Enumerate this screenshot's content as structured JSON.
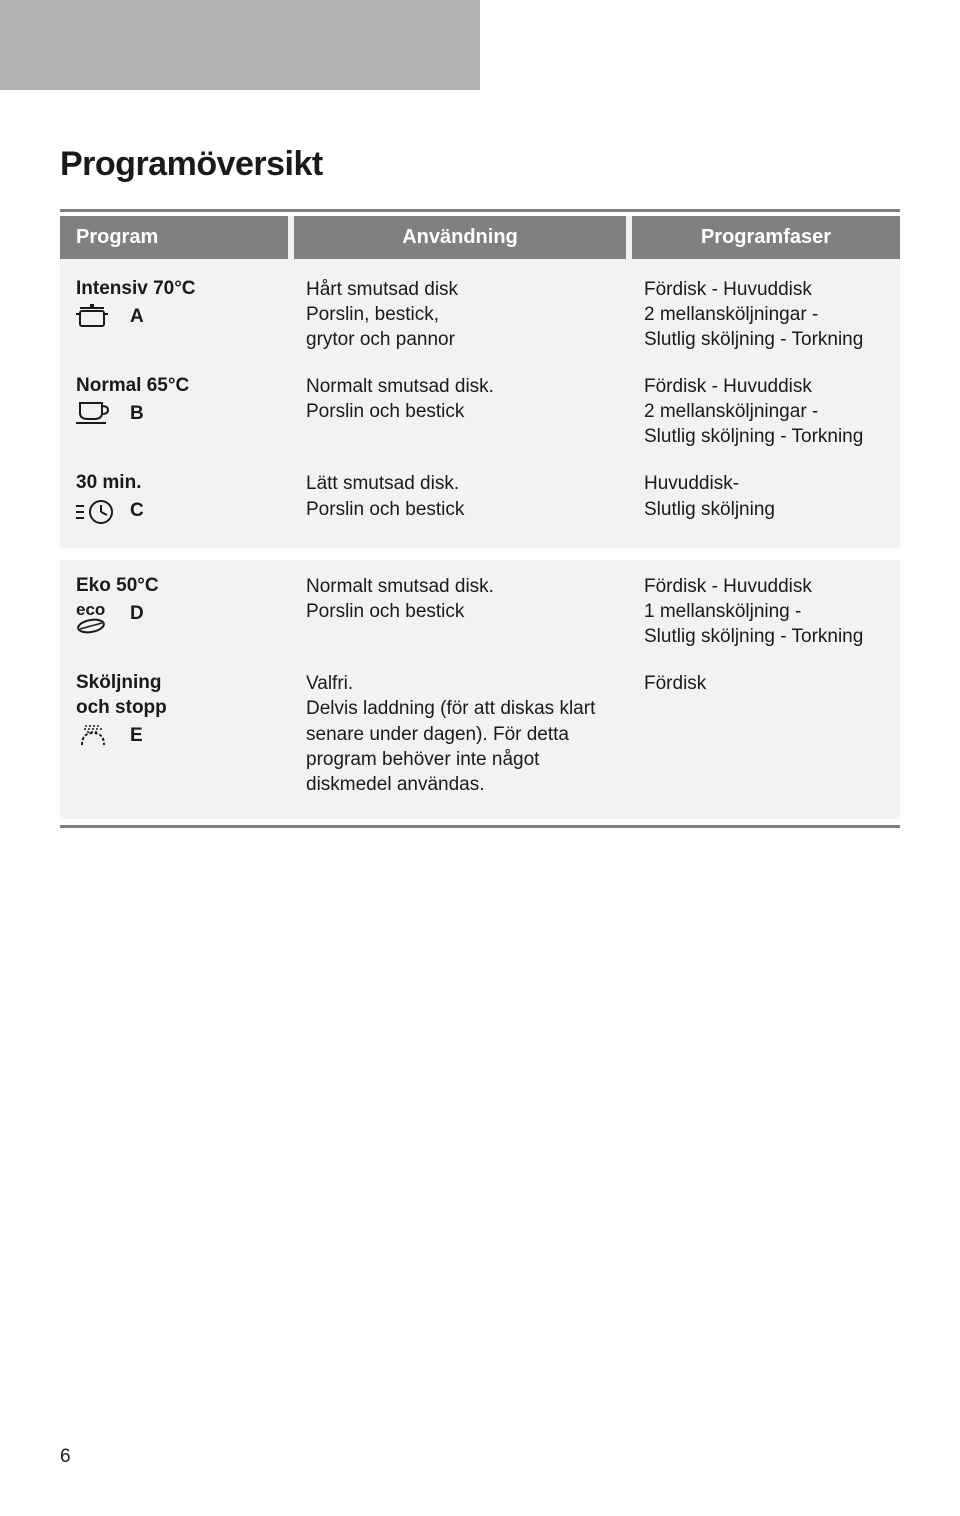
{
  "pageTitle": "Programöversikt",
  "pageNumber": "6",
  "headers": {
    "program": "Program",
    "usage": "Användning",
    "phases": "Programfaser"
  },
  "section1": {
    "rows": [
      {
        "title": "Intensiv 70°C",
        "letter": "A",
        "icon": "pot",
        "usage": "Hårt smutsad disk\nPorslin, bestick,\ngrytor och pannor",
        "phases": "Fördisk - Huvuddisk\n2 mellansköljningar -\nSlutlig sköljning - Torkning"
      },
      {
        "title": "Normal 65°C",
        "letter": "B",
        "icon": "cup",
        "usage": "Normalt smutsad disk.\nPorslin och bestick",
        "phases": "Fördisk - Huvuddisk\n2 mellansköljningar -\nSlutlig sköljning - Torkning"
      },
      {
        "title": "30 min.",
        "letter": "C",
        "icon": "clock",
        "usage": "Lätt smutsad disk.\nPorslin och bestick",
        "phases": "Huvuddisk-\nSlutlig sköljning"
      }
    ]
  },
  "section2": {
    "rows": [
      {
        "title": "Eko 50°C",
        "letter": "D",
        "icon": "eco",
        "usage": "Normalt smutsad disk.\nPorslin och bestick",
        "phases": "Fördisk - Huvuddisk\n1 mellansköljning -\nSlutlig sköljning - Torkning"
      },
      {
        "title": "Sköljning\noch stopp",
        "letter": "E",
        "icon": "shower",
        "usage": "Valfri.\nDelvis laddning (för att diskas klart senare under dagen). För detta program behöver inte något diskmedel användas.",
        "phases": "Fördisk"
      }
    ]
  },
  "colors": {
    "headerBg": "#808080",
    "cellBg": "#f2f2f2",
    "topBar": "#b3b3b3",
    "text": "#1a1a1a",
    "white": "#ffffff"
  }
}
